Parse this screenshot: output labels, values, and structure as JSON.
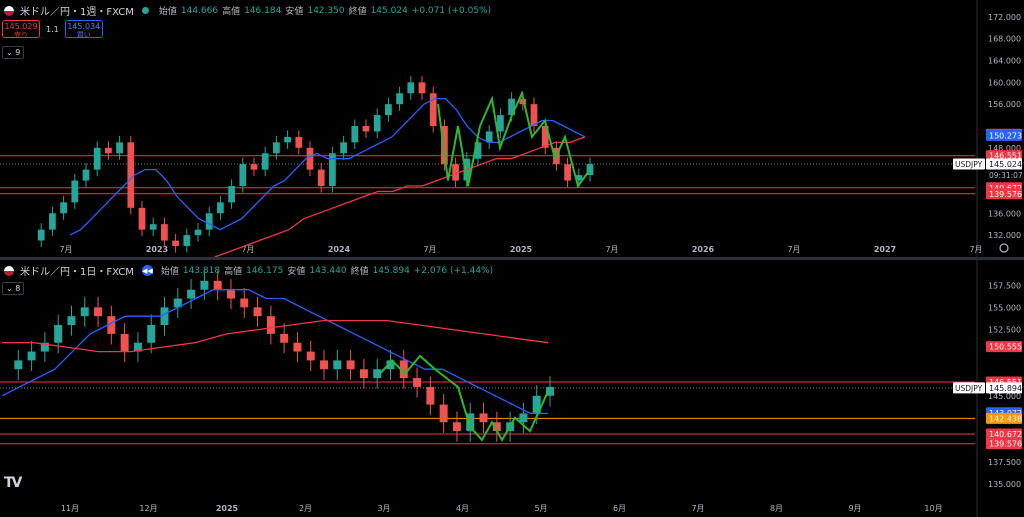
{
  "charts": [
    {
      "legend": {
        "symbol": "米ドル／円・1週・FXCM",
        "open_label": "始値",
        "open": "144.666",
        "high_label": "高値",
        "high": "146.184",
        "low_label": "安値",
        "low": "142.350",
        "close_label": "終値",
        "close": "145.024",
        "change": "+0.071 (+0.05%)"
      },
      "trade": {
        "sell_price": "145.029",
        "sell_label": "売り",
        "spread": "1.1",
        "buy_price": "145.034",
        "buy_label": "買い"
      },
      "indicator_count": "9",
      "axis": {
        "ticks": [
          "172.000",
          "168.000",
          "164.000",
          "160.000",
          "156.000",
          "148.000",
          "140.000",
          "136.000",
          "132.000"
        ],
        "time_labels": [
          "7月",
          "2023",
          "7月",
          "2024",
          "7月",
          "2025",
          "7月",
          "2026",
          "7月",
          "2027",
          "7月"
        ]
      },
      "price_tags": [
        {
          "text": "150.493",
          "color": "#f23645"
        },
        {
          "text": "150.273",
          "color": "#2962ff"
        },
        {
          "text": "146.551",
          "color": "#f23645"
        },
        {
          "text": "145.024",
          "color": "#ffffff",
          "symbol": "USDJPY",
          "time": "09:31:07"
        },
        {
          "text": "140.672",
          "color": "#f23645"
        },
        {
          "text": "139.576",
          "color": "#f23645"
        }
      ],
      "colors": {
        "up": "#26a69a",
        "down": "#ef5350",
        "ma_short": "#2962ff",
        "ma_long": "#f23645",
        "pattern": "#2eb82e",
        "level": "#f23645"
      },
      "chart_data": {
        "type": "line",
        "timeframe": "weekly",
        "y_range": [
          130,
          174
        ],
        "levels": [
          146.551,
          140.672,
          139.576
        ],
        "close_series_weekly_sampled": [
          131,
          133,
          136,
          138,
          142,
          144,
          148,
          147,
          149,
          137,
          133,
          134,
          131,
          130,
          132,
          133,
          136,
          138,
          141,
          145,
          144,
          147,
          149,
          150,
          148,
          144,
          141,
          147,
          149,
          152,
          151,
          154,
          156,
          158,
          160,
          158,
          152,
          145,
          142,
          146,
          149,
          151,
          154,
          157,
          156,
          152,
          148,
          145,
          142,
          143,
          145
        ],
        "ma_short": [
          132,
          133,
          135,
          137,
          139,
          141,
          143,
          144,
          144,
          142,
          139,
          137,
          135,
          134,
          133,
          134,
          135,
          137,
          139,
          141,
          142,
          144,
          146,
          147,
          146,
          146,
          146,
          147,
          148,
          149,
          150,
          152,
          154,
          156,
          157,
          157,
          155,
          152,
          150,
          149,
          149,
          150,
          151,
          152,
          153,
          153,
          152,
          151,
          150
        ],
        "ma_long": [
          128,
          129,
          130,
          131,
          132,
          133,
          135,
          136,
          137,
          138,
          139,
          140,
          140,
          141,
          141,
          142,
          143,
          144,
          145,
          146,
          146,
          147,
          148,
          149,
          149,
          150
        ]
      }
    },
    {
      "legend": {
        "symbol": "米ドル／円・1日・FXCM",
        "open_label": "始値",
        "open": "143.818",
        "high_label": "高値",
        "high": "146.175",
        "low_label": "安値",
        "low": "143.440",
        "close_label": "終値",
        "close": "145.894",
        "change": "+2.076 (+1.44%)"
      },
      "indicator_count": "8",
      "axis": {
        "ticks": [
          "157.500",
          "155.000",
          "152.500",
          "145.000",
          "137.500",
          "135.000"
        ],
        "time_labels": [
          "11月",
          "12月",
          "2025",
          "2月",
          "3月",
          "4月",
          "5月",
          "6月",
          "7月",
          "8月",
          "9月",
          "10月"
        ]
      },
      "price_tags": [
        {
          "text": "150.555",
          "color": "#f23645"
        },
        {
          "text": "146.551",
          "color": "#f23645"
        },
        {
          "text": "145.894",
          "color": "#ffffff",
          "symbol": "USDJPY"
        },
        {
          "text": "143.072",
          "color": "#2962ff"
        },
        {
          "text": "142.438",
          "color": "#ff9800"
        },
        {
          "text": "140.672",
          "color": "#f23645"
        },
        {
          "text": "139.576",
          "color": "#f23645"
        }
      ],
      "chart_data": {
        "type": "line",
        "timeframe": "daily",
        "y_range": [
          134,
          159
        ],
        "levels": [
          146.551,
          142.438,
          140.672,
          139.576
        ],
        "close_series_daily_sampled": [
          148,
          149,
          150,
          151,
          153,
          154,
          155,
          154,
          152,
          150,
          151,
          153,
          155,
          156,
          157,
          158,
          157,
          156,
          155,
          154,
          152,
          151,
          150,
          149,
          148,
          149,
          148,
          147,
          148,
          149,
          147,
          146,
          144,
          142,
          141,
          143,
          142,
          141,
          142,
          143,
          145,
          146
        ],
        "ma_short": [
          145,
          146,
          147,
          148,
          150,
          152,
          153,
          154,
          154,
          154,
          155,
          156,
          157,
          157,
          157,
          156,
          156,
          155,
          154,
          153,
          152,
          151,
          150,
          149,
          148,
          148,
          147,
          146,
          145,
          144,
          143,
          143
        ],
        "ma_long": [
          151,
          151,
          150.5,
          150,
          150,
          150.5,
          151,
          152,
          152.5,
          153,
          153.5,
          153.5,
          153.5,
          153,
          152.5,
          152,
          151.5,
          151
        ]
      }
    }
  ],
  "logo": "TV"
}
